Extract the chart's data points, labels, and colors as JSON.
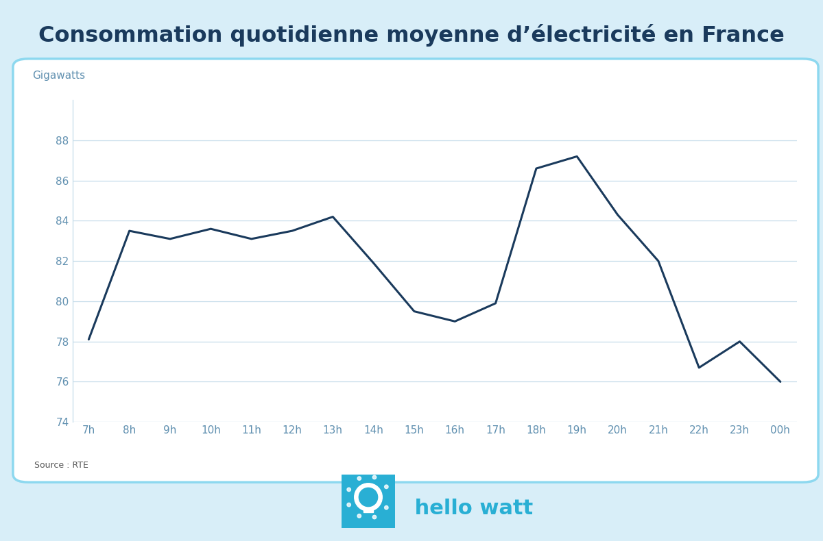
{
  "title": "Consommation quotidienne moyenne d’électricité en France",
  "ylabel": "Gigawatts",
  "source": "Source : RTE",
  "background_outer": "#d8eef8",
  "background_inner": "#ffffff",
  "border_color": "#8dd8ef",
  "line_color": "#1a3a5c",
  "grid_color": "#c5dcea",
  "title_color": "#1a3a5c",
  "axis_label_color": "#6090b0",
  "x_labels": [
    "7h",
    "8h",
    "9h",
    "10h",
    "11h",
    "12h",
    "13h",
    "14h",
    "15h",
    "16h",
    "17h",
    "18h",
    "19h",
    "20h",
    "21h",
    "22h",
    "23h",
    "00h"
  ],
  "y_values": [
    78.1,
    83.5,
    83.1,
    83.6,
    83.1,
    83.5,
    84.2,
    81.9,
    79.5,
    79.0,
    79.9,
    86.6,
    87.2,
    84.3,
    82.0,
    76.7,
    78.0,
    76.0
  ],
  "ylim": [
    74,
    90
  ],
  "yticks": [
    74,
    76,
    78,
    80,
    82,
    84,
    86,
    88
  ],
  "logo_text": " hello watt",
  "logo_color": "#29afd4",
  "footer_bg": "#d8eef8",
  "source_color": "#555555"
}
